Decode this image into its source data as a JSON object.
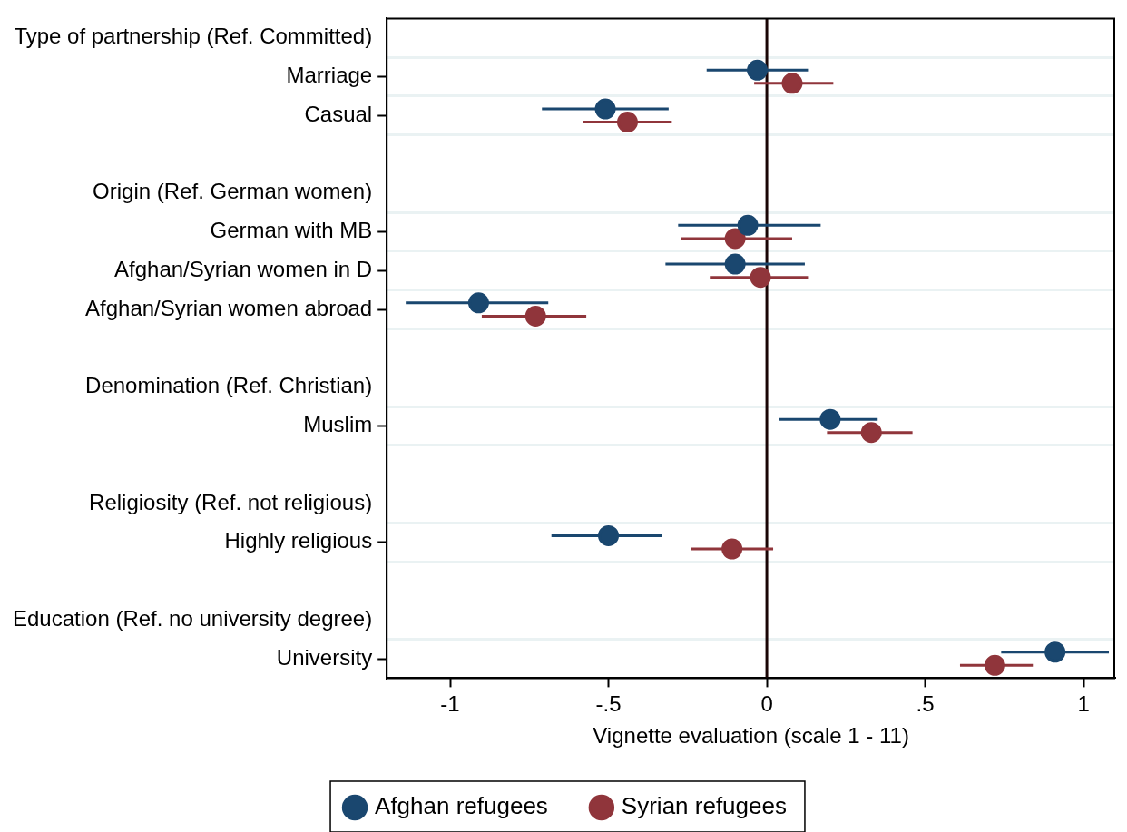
{
  "chart_data": {
    "type": "scatter",
    "orientation": "horizontal",
    "xlabel": "Vignette evaluation (scale 1 - 11)",
    "categories": [
      "Type of partnership (Ref. Committed)",
      "Marriage",
      "Casual",
      null,
      "Origin (Ref. German women)",
      "German with MB",
      "Afghan/Syrian women in D",
      "Afghan/Syrian women abroad",
      null,
      "Denomination (Ref. Christian)",
      "Muslim",
      null,
      "Religiosity (Ref. not religious)",
      "Highly religious",
      null,
      "Education (Ref. no university degree)",
      "University"
    ],
    "series": [
      {
        "name": "Afghan refugees",
        "color": "#1a476f",
        "values": [
          null,
          -0.03,
          -0.51,
          null,
          null,
          -0.06,
          -0.1,
          -0.91,
          null,
          null,
          0.2,
          null,
          null,
          -0.5,
          null,
          null,
          0.91
        ],
        "errors": [
          null,
          [
            -0.19,
            0.13
          ],
          [
            -0.71,
            -0.31
          ],
          null,
          null,
          [
            -0.28,
            0.17
          ],
          [
            -0.32,
            0.12
          ],
          [
            -1.14,
            -0.69
          ],
          null,
          null,
          [
            0.04,
            0.35
          ],
          null,
          null,
          [
            -0.68,
            -0.33
          ],
          null,
          null,
          [
            0.74,
            1.08
          ]
        ]
      },
      {
        "name": "Syrian refugees",
        "color": "#90353b",
        "values": [
          null,
          0.08,
          -0.44,
          null,
          null,
          -0.1,
          -0.02,
          -0.73,
          null,
          null,
          0.33,
          null,
          null,
          -0.11,
          null,
          null,
          0.72
        ],
        "errors": [
          null,
          [
            -0.04,
            0.21
          ],
          [
            -0.58,
            -0.3
          ],
          null,
          null,
          [
            -0.27,
            0.08
          ],
          [
            -0.18,
            0.13
          ],
          [
            -0.9,
            -0.57
          ],
          null,
          null,
          [
            0.19,
            0.46
          ],
          null,
          null,
          [
            -0.24,
            0.02
          ],
          null,
          null,
          [
            0.61,
            0.84
          ]
        ]
      }
    ],
    "xlim": [
      -1.2,
      1.1
    ],
    "xticks": [
      -1,
      {
        "value": -0.5,
        "label": "-.5"
      },
      0,
      {
        "value": 0.5,
        "label": ".5"
      },
      1
    ],
    "ref_lines": [
      {
        "axis": "x",
        "value": 0,
        "color": "#1a0505"
      }
    ],
    "grid": true,
    "legend": "bottom",
    "marker": "circle"
  }
}
